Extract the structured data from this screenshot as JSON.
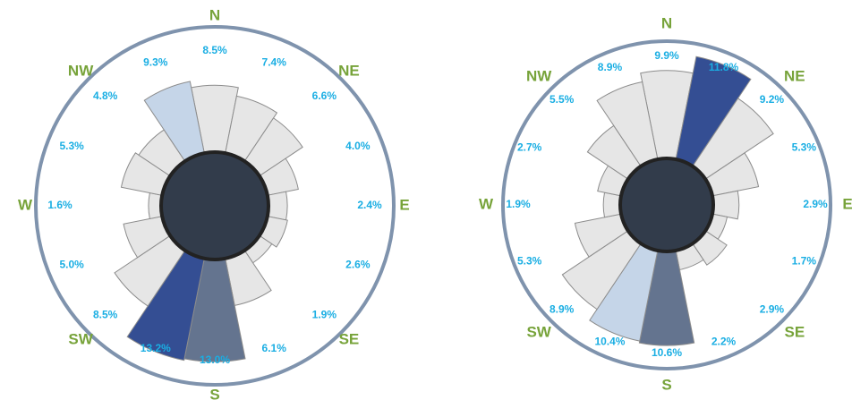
{
  "chart_data": [
    {
      "type": "rose",
      "categories": [
        "N",
        null,
        "NE",
        null,
        "E",
        null,
        "SE",
        null,
        "S",
        null,
        "SW",
        null,
        "W",
        null,
        "NW",
        null
      ],
      "values": [
        8.5,
        7.4,
        6.6,
        4.0,
        2.4,
        2.6,
        1.9,
        6.1,
        13.0,
        13.2,
        8.5,
        5.0,
        1.6,
        5.3,
        4.8,
        9.3
      ],
      "value_labels": [
        "8.5%",
        "7.4%",
        "6.6%",
        "4.0%",
        "2.4%",
        "2.6%",
        "1.9%",
        "6.1%",
        "13.0%",
        "13.2%",
        "8.5%",
        "5.0%",
        "1.6%",
        "5.3%",
        "4.8%",
        "9.3%"
      ],
      "colors": [
        "#e6e6e6",
        "#e6e6e6",
        "#e6e6e6",
        "#e6e6e6",
        "#e6e6e6",
        "#e6e6e6",
        "#e6e6e6",
        "#e6e6e6",
        "#64748f",
        "#344e93",
        "#e6e6e6",
        "#e6e6e6",
        "#e6e6e6",
        "#e6e6e6",
        "#e6e6e6",
        "#c5d5e8"
      ],
      "label_color": "#1aaee3",
      "category_color": "#77a33a"
    },
    {
      "type": "rose",
      "categories": [
        "N",
        null,
        "NE",
        null,
        "E",
        null,
        "SE",
        null,
        "S",
        null,
        "SW",
        null,
        "W",
        null,
        "NW",
        null
      ],
      "values": [
        9.9,
        11.8,
        9.2,
        5.3,
        2.9,
        1.7,
        2.9,
        2.2,
        10.6,
        10.4,
        8.9,
        5.3,
        1.9,
        2.7,
        5.5,
        8.9
      ],
      "value_labels": [
        "9.9%",
        "11.8%",
        "9.2%",
        "5.3%",
        "2.9%",
        "1.7%",
        "2.9%",
        "2.2%",
        "10.6%",
        "10.4%",
        "8.9%",
        "5.3%",
        "1.9%",
        "2.7%",
        "5.5%",
        "8.9%"
      ],
      "colors": [
        "#e6e6e6",
        "#344e93",
        "#e6e6e6",
        "#e6e6e6",
        "#e6e6e6",
        "#e6e6e6",
        "#e6e6e6",
        "#e6e6e6",
        "#64748f",
        "#c5d5e8",
        "#e6e6e6",
        "#e6e6e6",
        "#e6e6e6",
        "#e6e6e6",
        "#e6e6e6",
        "#e6e6e6"
      ],
      "label_color": "#1aaee3",
      "category_color": "#77a33a"
    }
  ]
}
